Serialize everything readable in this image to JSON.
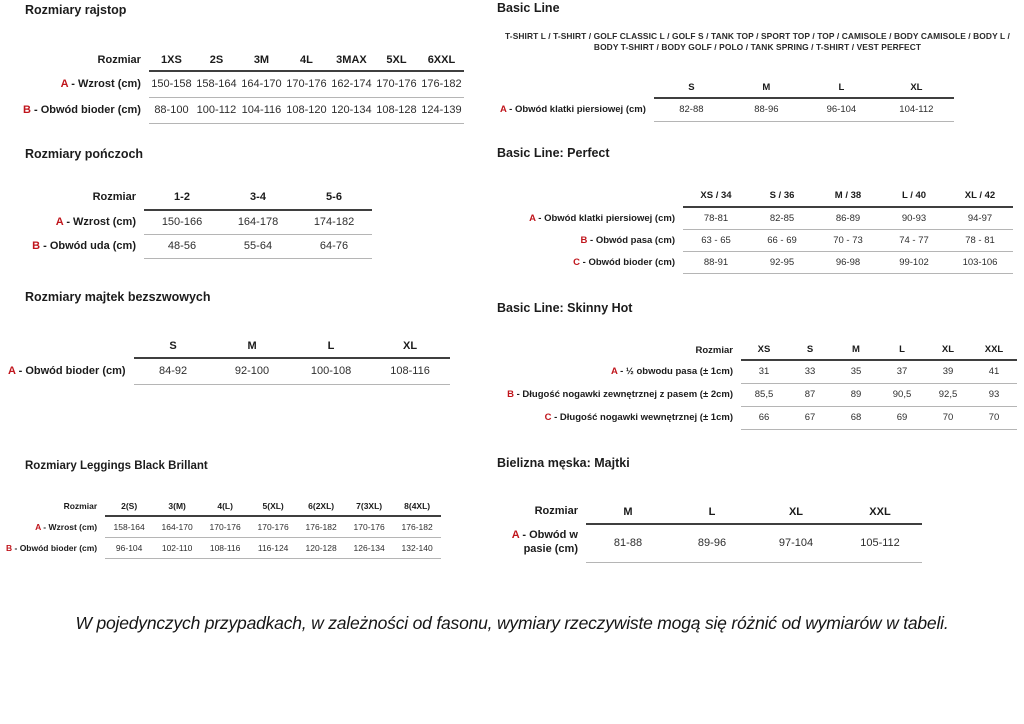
{
  "accent_color": "#c0151c",
  "sections": {
    "rajstop": {
      "title": "Rozmiary rajstop",
      "table": {
        "corner": "Rozmiar",
        "columns": [
          "1XS",
          "2S",
          "3M",
          "4L",
          "3MAX",
          "5XL",
          "6XXL"
        ],
        "rows": [
          {
            "key": "A",
            "label": "Wzrost (cm)",
            "values": [
              "150-158",
              "158-164",
              "164-170",
              "170-176",
              "162-174",
              "170-176",
              "176-182"
            ]
          },
          {
            "key": "B",
            "label": "Obwód bioder (cm)",
            "values": [
              "88-100",
              "100-112",
              "104-116",
              "108-120",
              "120-134",
              "108-128",
              "124-139"
            ]
          }
        ]
      }
    },
    "ponczochy": {
      "title": "Rozmiary pończoch",
      "table": {
        "corner": "Rozmiar",
        "columns": [
          "1-2",
          "3-4",
          "5-6"
        ],
        "rows": [
          {
            "key": "A",
            "label": "Wzrost (cm)",
            "values": [
              "150-166",
              "164-178",
              "174-182"
            ]
          },
          {
            "key": "B",
            "label": "Obwód uda (cm)",
            "values": [
              "48-56",
              "55-64",
              "64-76"
            ]
          }
        ]
      }
    },
    "majtki_bezszwowe": {
      "title": "Rozmiary majtek bezszwowych",
      "table": {
        "corner": "",
        "columns": [
          "S",
          "M",
          "L",
          "XL"
        ],
        "rows": [
          {
            "key": "A",
            "label": "Obwód bioder (cm)",
            "values": [
              "84-92",
              "92-100",
              "100-108",
              "108-116"
            ]
          }
        ]
      }
    },
    "leggings": {
      "title": "Rozmiary Leggings Black Brillant",
      "table": {
        "corner": "Rozmiar",
        "columns": [
          "2(S)",
          "3(M)",
          "4(L)",
          "5(XL)",
          "6(2XL)",
          "7(3XL)",
          "8(4XL)"
        ],
        "rows": [
          {
            "key": "A",
            "label": "Wzrost (cm)",
            "values": [
              "158-164",
              "164-170",
              "170-176",
              "170-176",
              "176-182",
              "170-176",
              "176-182"
            ]
          },
          {
            "key": "B",
            "label": "Obwód bioder (cm)",
            "values": [
              "96-104",
              "102-110",
              "108-116",
              "116-124",
              "120-128",
              "126-134",
              "132-140"
            ]
          }
        ]
      }
    },
    "basic_line": {
      "title": "Basic Line",
      "products": "T-SHIRT L / T-SHIRT / GOLF CLASSIC L / GOLF S / TANK TOP / SPORT TOP / TOP / CAMISOLE / BODY CAMISOLE / BODY L / BODY T-SHIRT / BODY GOLF / POLO / TANK SPRING / T-SHIRT / VEST PERFECT",
      "table": {
        "corner": "",
        "columns": [
          "S",
          "M",
          "L",
          "XL"
        ],
        "rows": [
          {
            "key": "A",
            "label": "Obwód klatki piersiowej (cm)",
            "values": [
              "82-88",
              "88-96",
              "96-104",
              "104-112"
            ]
          }
        ]
      }
    },
    "perfect": {
      "title": "Basic Line: Perfect",
      "table": {
        "corner": "",
        "columns": [
          "XS / 34",
          "S / 36",
          "M / 38",
          "L / 40",
          "XL / 42"
        ],
        "rows": [
          {
            "key": "A",
            "label": "Obwód klatki piersiowej (cm)",
            "values": [
              "78-81",
              "82-85",
              "86-89",
              "90-93",
              "94-97"
            ]
          },
          {
            "key": "B",
            "label": "Obwód pasa (cm)",
            "values": [
              "63 - 65",
              "66 - 69",
              "70 - 73",
              "74 - 77",
              "78 - 81"
            ]
          },
          {
            "key": "C",
            "label": "Obwód bioder (cm)",
            "values": [
              "88-91",
              "92-95",
              "96-98",
              "99-102",
              "103-106"
            ]
          }
        ]
      }
    },
    "skinny_hot": {
      "title": "Basic Line: Skinny Hot",
      "table": {
        "corner": "Rozmiar",
        "columns": [
          "XS",
          "S",
          "M",
          "L",
          "XL",
          "XXL"
        ],
        "rows": [
          {
            "key": "A",
            "label": "½ obwodu pasa (± 1cm)",
            "values": [
              "31",
              "33",
              "35",
              "37",
              "39",
              "41"
            ]
          },
          {
            "key": "B",
            "label": "Długość nogawki zewnętrznej z pasem (± 2cm)",
            "values": [
              "85,5",
              "87",
              "89",
              "90,5",
              "92,5",
              "93"
            ]
          },
          {
            "key": "C",
            "label": "Długość nogawki wewnętrznej (± 1cm)",
            "values": [
              "66",
              "67",
              "68",
              "69",
              "70",
              "70"
            ]
          }
        ]
      }
    },
    "majtki_meskie": {
      "title": "Bielizna męska: Majtki",
      "table": {
        "corner": "Rozmiar",
        "columns": [
          "M",
          "L",
          "XL",
          "XXL"
        ],
        "rows": [
          {
            "key": "A",
            "label": "Obwód w pasie (cm)",
            "values": [
              "81-88",
              "89-96",
              "97-104",
              "105-112"
            ]
          }
        ]
      }
    }
  },
  "footer": {
    "note": "W pojedynczych przypadkach, w zależności od fasonu, wymiary rzeczywiste mogą się różnić od wymiarów w tabeli."
  }
}
